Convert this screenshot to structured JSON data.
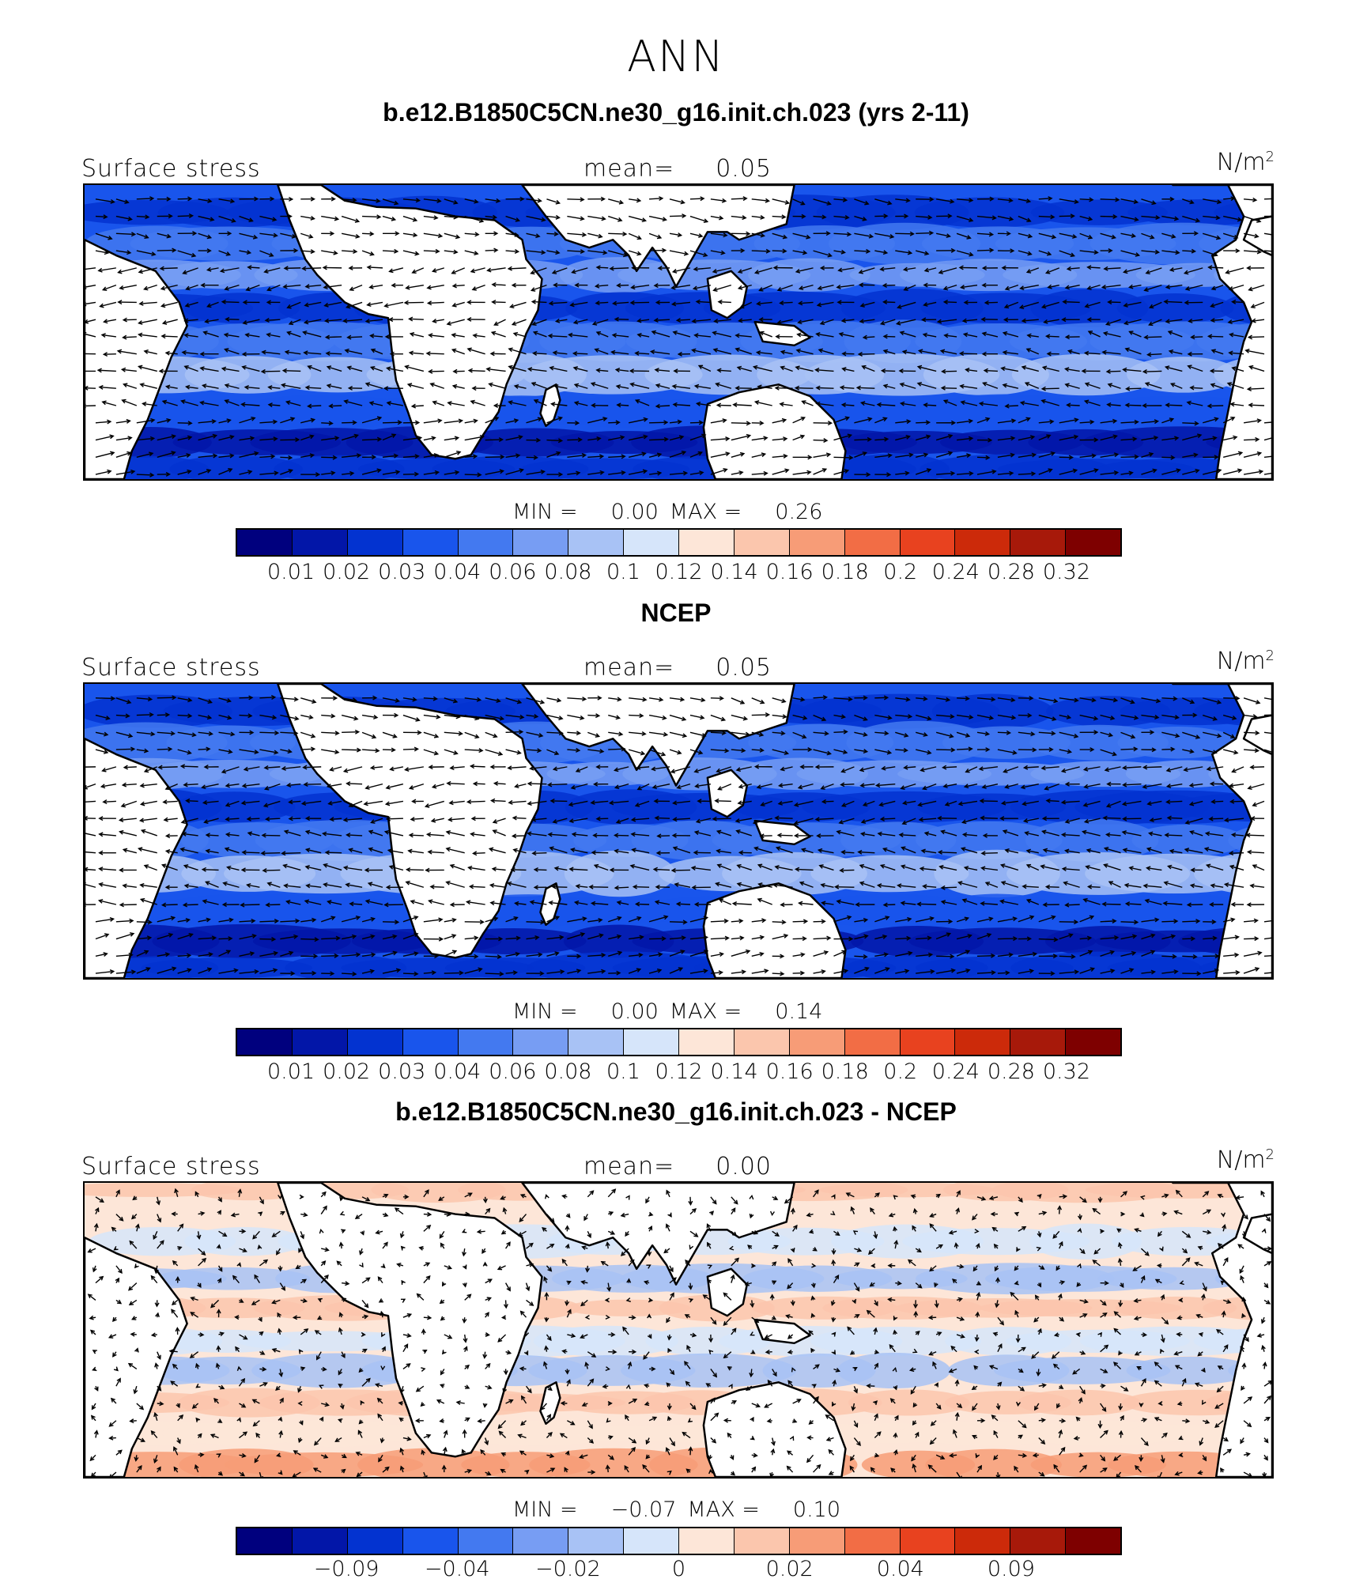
{
  "season": "ANN",
  "panels": [
    {
      "title": "b.e12.B1850C5CN.ne30_g16.init.ch.023 (yrs 2-11)",
      "variable": "Surface stress",
      "mean_label": "mean=",
      "mean": "0.05",
      "units": "N/m",
      "units_sup": "2",
      "min_label": "MIN =",
      "min": "0.00",
      "max_label": "MAX =",
      "max": "0.26",
      "kind": "abs"
    },
    {
      "title": "NCEP",
      "variable": "Surface stress",
      "mean_label": "mean=",
      "mean": "0.05",
      "units": "N/m",
      "units_sup": "2",
      "min_label": "MIN =",
      "min": "0.00",
      "max_label": "MAX =",
      "max": "0.14",
      "kind": "abs"
    },
    {
      "title": "b.e12.B1850C5CN.ne30_g16.init.ch.023 - NCEP",
      "variable": "Surface stress",
      "mean_label": "mean=",
      "mean": "0.00",
      "units": "N/m",
      "units_sup": "2",
      "min_label": "MIN =",
      "min": "−0.07",
      "max_label": "MAX =",
      "max": "0.10",
      "kind": "diff"
    }
  ],
  "colorbar_colors": [
    "#00007e",
    "#0216a8",
    "#0333d0",
    "#1955ec",
    "#4379f0",
    "#779df3",
    "#a8c2f5",
    "#d6e5fa",
    "#fde6d8",
    "#fbc6ad",
    "#f79c77",
    "#f26d45",
    "#e8421f",
    "#cc2a0a",
    "#a7190a",
    "#7e0000"
  ],
  "colorbar_abs_ticks": [
    "0.01",
    "0.02",
    "0.03",
    "0.04",
    "0.06",
    "0.08",
    "0.1",
    "0.12",
    "0.14",
    "0.16",
    "0.18",
    "0.2",
    "0.24",
    "0.28",
    "0.32"
  ],
  "colorbar_diff_ticks": [
    {
      "label": "−0.09",
      "boundary": 2
    },
    {
      "label": "−0.04",
      "boundary": 4
    },
    {
      "label": "−0.02",
      "boundary": 6
    },
    {
      "label": "0",
      "boundary": 8
    },
    {
      "label": "0.02",
      "boundary": 10
    },
    {
      "label": "0.04",
      "boundary": 12
    },
    {
      "label": "0.09",
      "boundary": 14
    }
  ]
}
